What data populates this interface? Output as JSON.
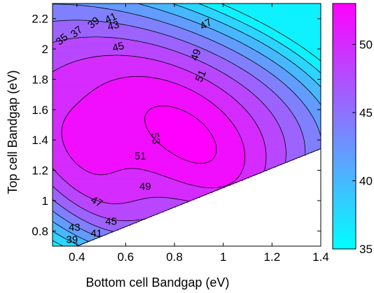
{
  "chart_data": {
    "type": "contour",
    "xlabel": "Bottom cell Bandgap (eV)",
    "ylabel": "Top cell Bandgap (eV)",
    "xlim": [
      0.3,
      1.4
    ],
    "ylim": [
      0.7,
      2.3
    ],
    "x_ticks": [
      0.4,
      0.6,
      0.8,
      1,
      1.2,
      1.4
    ],
    "x_tick_labels": [
      "0.4",
      "0.6",
      "0.8",
      "1",
      "1.2",
      "1.4"
    ],
    "y_ticks": [
      0.8,
      1,
      1.2,
      1.4,
      1.6,
      1.8,
      2,
      2.2
    ],
    "y_tick_labels": [
      "0.8",
      "1",
      "1.2",
      "1.4",
      "1.6",
      "1.8",
      "2",
      "2.2"
    ],
    "contour_levels": [
      35,
      37,
      39,
      41,
      43,
      45,
      47,
      49,
      51,
      53
    ],
    "colorbar": {
      "min": 35,
      "max": 53,
      "ticks": [
        35,
        40,
        45,
        50
      ],
      "tick_labels": [
        "35",
        "40",
        "45",
        "50"
      ],
      "colors": [
        "#00ffff",
        "#ff00ff"
      ]
    },
    "peak": {
      "x": 0.72,
      "y": 1.42,
      "value": 53.5
    },
    "contour_labels": [
      {
        "text": "35",
        "x": 0.34,
        "y": 2.06,
        "rot": -40
      },
      {
        "text": "37",
        "x": 0.4,
        "y": 2.11,
        "rot": -40
      },
      {
        "text": "39",
        "x": 0.47,
        "y": 2.17,
        "rot": -40
      },
      {
        "text": "41",
        "x": 0.54,
        "y": 2.2,
        "rot": -25
      },
      {
        "text": "43",
        "x": 0.55,
        "y": 2.15,
        "rot": -15
      },
      {
        "text": "45",
        "x": 0.57,
        "y": 2.01,
        "rot": -15
      },
      {
        "text": "47",
        "x": 0.93,
        "y": 2.16,
        "rot": -30
      },
      {
        "text": "49",
        "x": 0.89,
        "y": 1.96,
        "rot": -70
      },
      {
        "text": "51",
        "x": 0.91,
        "y": 1.82,
        "rot": -65
      },
      {
        "text": "53",
        "x": 0.72,
        "y": 1.41,
        "rot": 80
      },
      {
        "text": "51",
        "x": 0.66,
        "y": 1.29,
        "rot": 0
      },
      {
        "text": "49",
        "x": 0.68,
        "y": 1.09,
        "rot": 0
      },
      {
        "text": "47",
        "x": 0.48,
        "y": 0.99,
        "rot": 30
      },
      {
        "text": "45",
        "x": 0.54,
        "y": 0.86,
        "rot": 0
      },
      {
        "text": "43",
        "x": 0.39,
        "y": 0.82,
        "rot": 0
      },
      {
        "text": "41",
        "x": 0.48,
        "y": 0.78,
        "rot": 0
      },
      {
        "text": "39",
        "x": 0.38,
        "y": 0.74,
        "rot": 0
      }
    ]
  }
}
